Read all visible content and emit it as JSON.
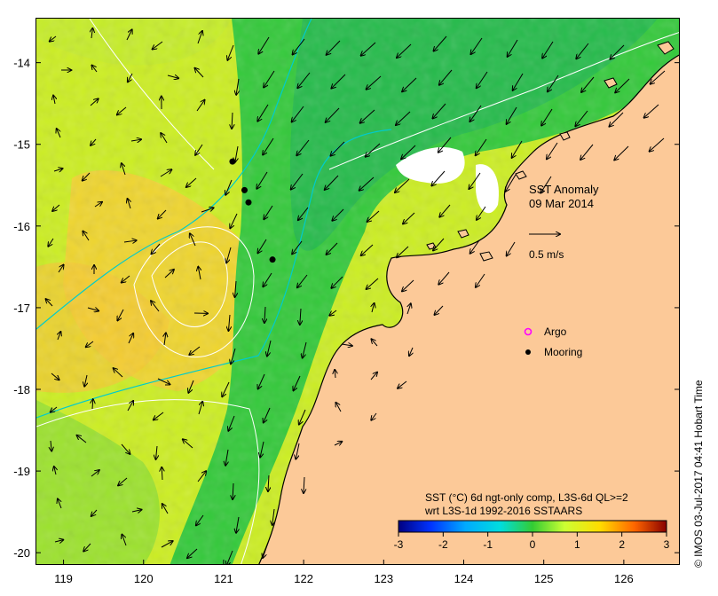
{
  "map": {
    "title_line1": "SST Anomaly",
    "title_line2": "09 Mar 2014",
    "scale_label": "0.5 m/s",
    "legend_argo": "Argo",
    "legend_mooring": "Mooring",
    "colorbar_title_line1": "SST (°C) 6d ngt-only comp, L3S-6d QL>=2",
    "colorbar_title_line2": "wrt L3S-1d 1992-2016 SSTAARS",
    "colorbar_ticks": [
      "-3",
      "-2",
      "-1",
      "0",
      "1",
      "2",
      "3"
    ],
    "x_ticks": [
      "119",
      "120",
      "121",
      "122",
      "123",
      "124",
      "125",
      "126"
    ],
    "y_ticks": [
      "-14",
      "-15",
      "-16",
      "-17",
      "-18",
      "-19",
      "-20"
    ],
    "credit": "© IMOS 03-Jul-2017 04:41 Hobart Time",
    "colors": {
      "land": "#fcc998",
      "green": "#33cc33",
      "yellow": "#ccff33",
      "orange": "#ffcc33",
      "cyan": "#00cccc",
      "argo": "#ff00ff"
    },
    "moorings": [
      {
        "lon": 121.1,
        "lat": -15.2
      },
      {
        "lon": 121.25,
        "lat": -15.55
      },
      {
        "lon": 121.3,
        "lat": -15.7
      },
      {
        "lon": 121.6,
        "lat": -16.4
      }
    ],
    "lon_range": [
      118.65,
      126.7
    ],
    "lat_range": [
      -20.15,
      -13.45
    ]
  }
}
